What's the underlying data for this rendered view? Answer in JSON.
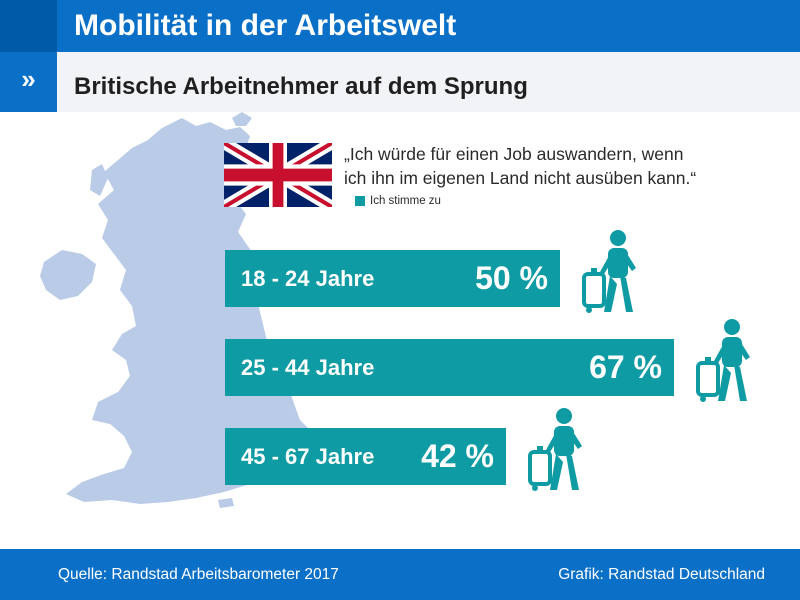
{
  "header": {
    "title": "Mobilität in der Arbeitswelt"
  },
  "subheader": {
    "marker": "»",
    "title": "Britische Arbeitnehmer auf dem Sprung"
  },
  "quote": "„Ich würde für einen Job auswandern, wenn\n ich ihn im eigenen Land nicht ausüben kann.“",
  "colors": {
    "accent": "#0f9ba3",
    "header": "#0a6fc7",
    "map": "#b9cbe6",
    "flag_blue": "#012169",
    "flag_red": "#c8102e"
  },
  "icons": {
    "flag": "uk-flag-icon",
    "person": "traveler-with-suitcase-icon",
    "map": "uk-map-silhouette"
  },
  "chart_data": {
    "type": "bar",
    "orientation": "horizontal",
    "title": "",
    "categories": [
      "18 - 24 Jahre",
      "25 - 44 Jahre",
      "45 - 67 Jahre"
    ],
    "series": [
      {
        "name": "Ich stimme zu",
        "values": [
          50,
          67,
          42
        ]
      }
    ],
    "value_labels": [
      "50 %",
      "67 %",
      "42 %"
    ],
    "unit": "%",
    "xlim": [
      0,
      100
    ],
    "grid": false,
    "legend": "top"
  },
  "footer": {
    "source": "Quelle: Randstad Arbeitsbarometer 2017",
    "credit": "Grafik: Randstad Deutschland"
  }
}
